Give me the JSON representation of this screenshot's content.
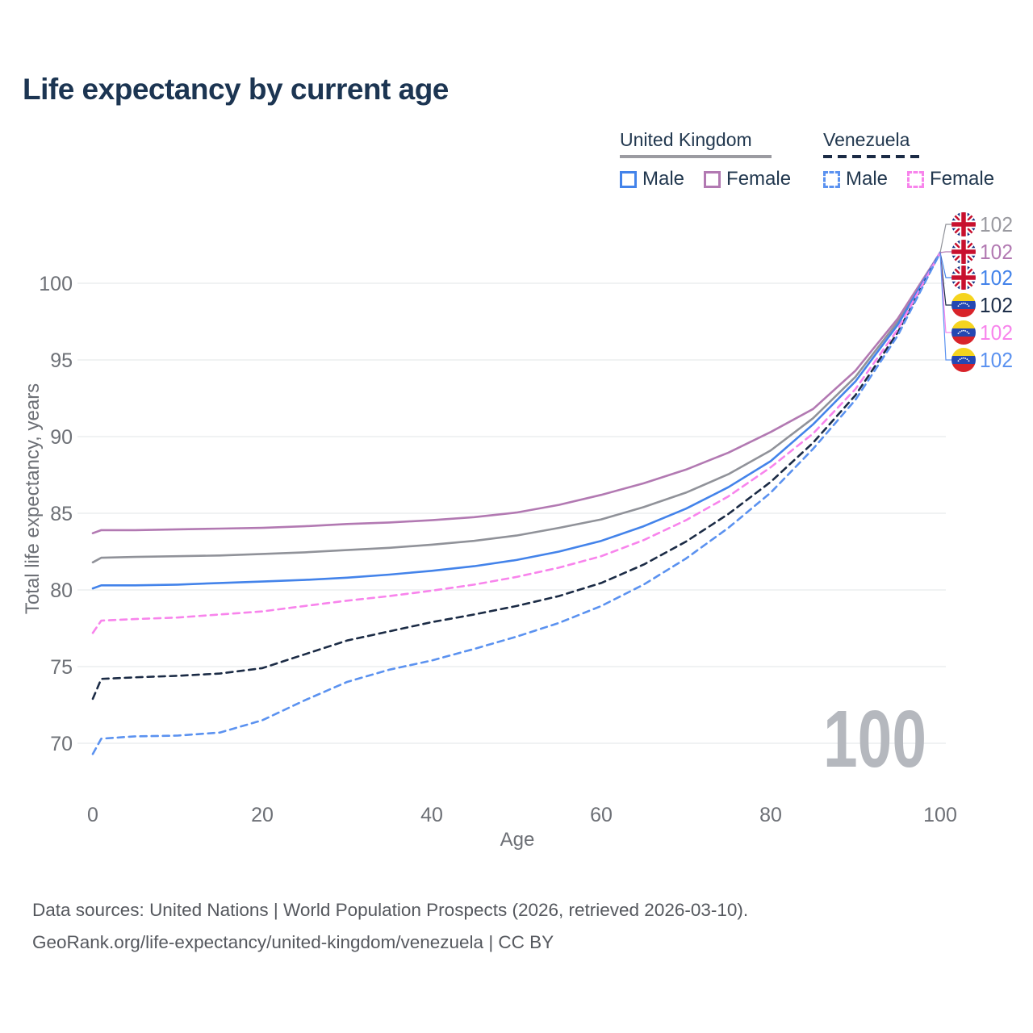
{
  "title": "Life expectancy by current age",
  "legend": {
    "groups": [
      {
        "label": "United Kingdom",
        "line_style": "solid",
        "rule_color": "#9b9ba1",
        "items": [
          {
            "label": "Male",
            "color": "#4383ea",
            "dashed": false
          },
          {
            "label": "Female",
            "color": "#b279b2",
            "dashed": false
          }
        ]
      },
      {
        "label": "Venezuela",
        "line_style": "dashed",
        "rule_color": "#1b2b45",
        "items": [
          {
            "label": "Male",
            "color": "#5b92f0",
            "dashed": true
          },
          {
            "label": "Female",
            "color": "#f884ec",
            "dashed": true
          }
        ]
      }
    ]
  },
  "chart_data": {
    "type": "line",
    "title": "Life expectancy by current age",
    "xlabel": "Age",
    "ylabel": "Total life expectancy, years",
    "xlim": [
      0,
      100
    ],
    "ylim": [
      68,
      103
    ],
    "xticks": [
      0,
      20,
      40,
      60,
      80,
      100
    ],
    "yticks": [
      70,
      75,
      80,
      85,
      90,
      95,
      100
    ],
    "grid": "horizontal",
    "legend_position": "top-right",
    "watermark_age": "100",
    "x": [
      0,
      1,
      5,
      10,
      15,
      20,
      25,
      30,
      35,
      40,
      45,
      50,
      55,
      60,
      65,
      70,
      75,
      80,
      85,
      90,
      95,
      100
    ],
    "series": [
      {
        "name": "United Kingdom — Both sexes",
        "country": "United Kingdom",
        "flag": "uk",
        "color": "#909299",
        "label_color": "#9a9aa0",
        "dashed": false,
        "end_label": "102",
        "values": [
          81.8,
          82.1,
          82.15,
          82.2,
          82.25,
          82.35,
          82.45,
          82.6,
          82.75,
          82.95,
          83.2,
          83.55,
          84.05,
          84.6,
          85.4,
          86.35,
          87.55,
          89.1,
          91.2,
          93.9,
          97.5,
          102
        ]
      },
      {
        "name": "United Kingdom — Female",
        "country": "United Kingdom",
        "flag": "uk",
        "color": "#b279b2",
        "label_color": "#b279b2",
        "dashed": false,
        "end_label": "102",
        "values": [
          83.7,
          83.9,
          83.9,
          83.95,
          84.0,
          84.05,
          84.15,
          84.3,
          84.4,
          84.55,
          84.75,
          85.05,
          85.55,
          86.2,
          86.95,
          87.85,
          88.95,
          90.3,
          91.8,
          94.3,
          97.7,
          102
        ]
      },
      {
        "name": "United Kingdom — Male",
        "country": "United Kingdom",
        "flag": "uk",
        "color": "#4383ea",
        "label_color": "#4383ea",
        "dashed": false,
        "end_label": "102",
        "values": [
          80.1,
          80.3,
          80.3,
          80.35,
          80.45,
          80.55,
          80.65,
          80.8,
          81.0,
          81.25,
          81.55,
          81.95,
          82.5,
          83.2,
          84.15,
          85.3,
          86.7,
          88.4,
          90.8,
          93.6,
          97.3,
          102
        ]
      },
      {
        "name": "Venezuela — Both sexes",
        "country": "Venezuela",
        "flag": "ve",
        "color": "#1b2b45",
        "label_color": "#1d2e49",
        "dashed": true,
        "end_label": "102",
        "values": [
          72.9,
          74.2,
          74.3,
          74.4,
          74.55,
          74.9,
          75.8,
          76.7,
          77.3,
          77.9,
          78.4,
          78.95,
          79.6,
          80.45,
          81.65,
          83.15,
          84.95,
          87.05,
          89.6,
          92.7,
          96.8,
          102
        ]
      },
      {
        "name": "Venezuela — Female",
        "country": "Venezuela",
        "flag": "ve",
        "color": "#f884ec",
        "label_color": "#f884ec",
        "dashed": true,
        "end_label": "102",
        "values": [
          77.2,
          78.0,
          78.1,
          78.2,
          78.4,
          78.6,
          78.95,
          79.3,
          79.6,
          79.95,
          80.35,
          80.85,
          81.45,
          82.2,
          83.25,
          84.55,
          86.1,
          88.0,
          90.2,
          93.1,
          97.0,
          102
        ]
      },
      {
        "name": "Venezuela — Male",
        "country": "Venezuela",
        "flag": "ve",
        "color": "#5b92f0",
        "label_color": "#5b92f0",
        "dashed": true,
        "end_label": "102",
        "values": [
          69.3,
          70.3,
          70.45,
          70.5,
          70.7,
          71.5,
          72.8,
          74.0,
          74.8,
          75.4,
          76.15,
          76.95,
          77.85,
          78.95,
          80.35,
          82.05,
          84.05,
          86.35,
          89.2,
          92.4,
          96.6,
          102
        ]
      }
    ]
  },
  "footer": {
    "line1": "Data sources: United Nations | World Population Prospects (2026, retrieved 2026-03-10).",
    "line2": "GeoRank.org/life-expectancy/united-kingdom/venezuela | CC BY"
  },
  "colors": {
    "title_text": "#1c3552",
    "axis_text": "#6d7076",
    "gridline": "#e8e9ec",
    "watermark": "#b5b8be",
    "footer_text": "#55585e"
  }
}
